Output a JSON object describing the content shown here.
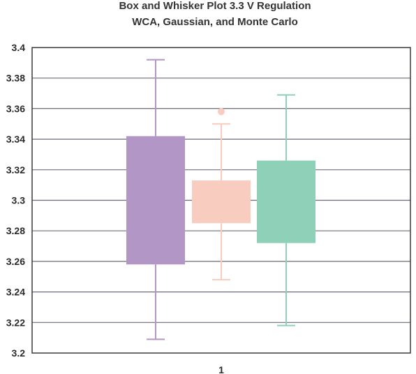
{
  "chart_data": {
    "type": "box",
    "title": "Box and Whisker Plot 3.3 V Regulation",
    "subtitle": "WCA, Gaussian, and Monte Carlo",
    "xlabel": "",
    "ylabel": "",
    "categories": [
      "1"
    ],
    "ylim": [
      3.2,
      3.4
    ],
    "yticks": [
      "3.2",
      "3.22",
      "3.24",
      "3.26",
      "3.28",
      "3.3",
      "3.32",
      "3.34",
      "3.36",
      "3.38",
      "3.4"
    ],
    "grid": true,
    "legend": "none",
    "series": [
      {
        "color": "#b296c6",
        "min": 3.209,
        "q1": 3.258,
        "q3": 3.342,
        "max": 3.392,
        "outliers": []
      },
      {
        "color": "#f8cdbf",
        "min": 3.248,
        "q1": 3.285,
        "q3": 3.313,
        "max": 3.35,
        "outliers": [
          3.358
        ]
      },
      {
        "color": "#8fd0b8",
        "min": 3.218,
        "q1": 3.272,
        "q3": 3.326,
        "max": 3.369,
        "outliers": []
      }
    ]
  }
}
